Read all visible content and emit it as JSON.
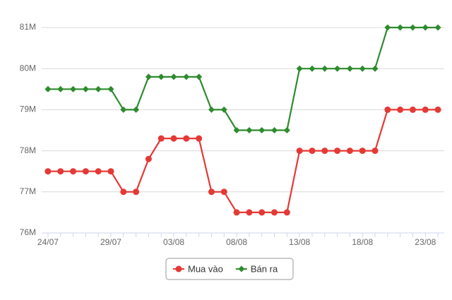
{
  "chart_data": {
    "type": "line",
    "categories": [
      "24/07",
      null,
      null,
      null,
      null,
      "29/07",
      null,
      null,
      null,
      null,
      "03/08",
      null,
      null,
      null,
      null,
      "08/08",
      null,
      null,
      null,
      null,
      "13/08",
      null,
      null,
      null,
      null,
      "18/08",
      null,
      null,
      null,
      null,
      "23/08",
      null
    ],
    "series": [
      {
        "name": "Mua vào",
        "color": "#e53935",
        "marker": "circle",
        "values": [
          77500000,
          77500000,
          77500000,
          77500000,
          77500000,
          77500000,
          77000000,
          77000000,
          77800000,
          78300000,
          78300000,
          78300000,
          78300000,
          77000000,
          77000000,
          76500000,
          76500000,
          76500000,
          76500000,
          76500000,
          78000000,
          78000000,
          78000000,
          78000000,
          78000000,
          78000000,
          78000000,
          79000000,
          79000000,
          79000000,
          79000000,
          79000000
        ]
      },
      {
        "name": "Bán ra",
        "color": "#2e8b2e",
        "marker": "diamond",
        "values": [
          79500000,
          79500000,
          79500000,
          79500000,
          79500000,
          79500000,
          79000000,
          79000000,
          79800000,
          79800000,
          79800000,
          79800000,
          79800000,
          79000000,
          79000000,
          78500000,
          78500000,
          78500000,
          78500000,
          78500000,
          80000000,
          80000000,
          80000000,
          80000000,
          80000000,
          80000000,
          80000000,
          81000000,
          81000000,
          81000000,
          81000000,
          81000000
        ]
      }
    ],
    "ylim": [
      76000000,
      81000000
    ],
    "yticks": [
      {
        "value": 76000000,
        "label": "76M"
      },
      {
        "value": 77000000,
        "label": "77M"
      },
      {
        "value": 78000000,
        "label": "78M"
      },
      {
        "value": 79000000,
        "label": "79M"
      },
      {
        "value": 80000000,
        "label": "80M"
      },
      {
        "value": 81000000,
        "label": "81M"
      }
    ],
    "grid": true,
    "legend": "bottom"
  }
}
